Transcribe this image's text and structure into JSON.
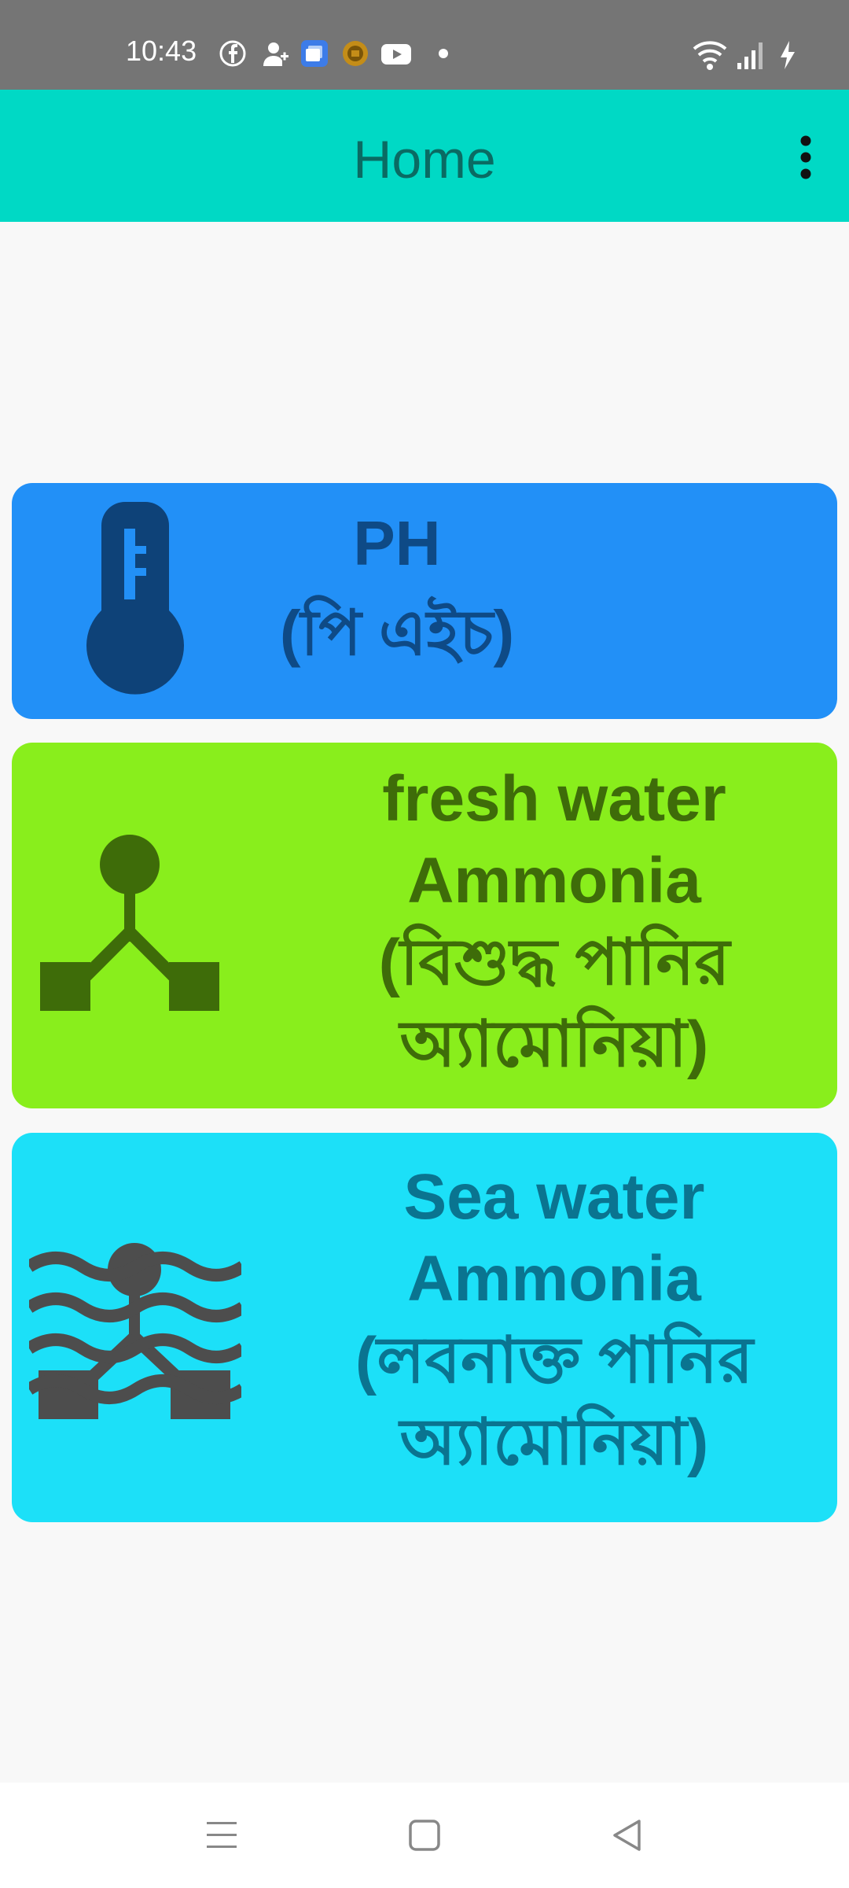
{
  "status_bar": {
    "time": "10:43",
    "icons": [
      "facebook-icon",
      "person-add-icon",
      "app-icon",
      "coin-icon",
      "youtube-icon",
      "dot-icon"
    ],
    "right_icons": [
      "wifi-icon",
      "signal-icon",
      "charging-icon"
    ]
  },
  "app_bar": {
    "title": "Home",
    "menu_icon": "more-vert-icon",
    "color": "#00d9c5"
  },
  "cards": [
    {
      "lines": [
        "PH",
        "(পি এইচ)"
      ],
      "icon": "thermometer-icon",
      "color": "#2290f7"
    },
    {
      "lines": [
        "fresh water",
        "Ammonia",
        "(বিশুদ্ধ পানির",
        "অ্যামোনিয়া)"
      ],
      "icon": "molecule-icon",
      "color": "#89ee1c"
    },
    {
      "lines": [
        "Sea water",
        "Ammonia",
        "(লবনাক্ত পানির",
        "অ্যামোনিয়া)"
      ],
      "icon": "sea-molecule-icon",
      "color": "#1ce0f8"
    }
  ],
  "nav_bar": {
    "buttons": [
      "menu-nav-icon",
      "home-nav-icon",
      "back-nav-icon"
    ]
  }
}
